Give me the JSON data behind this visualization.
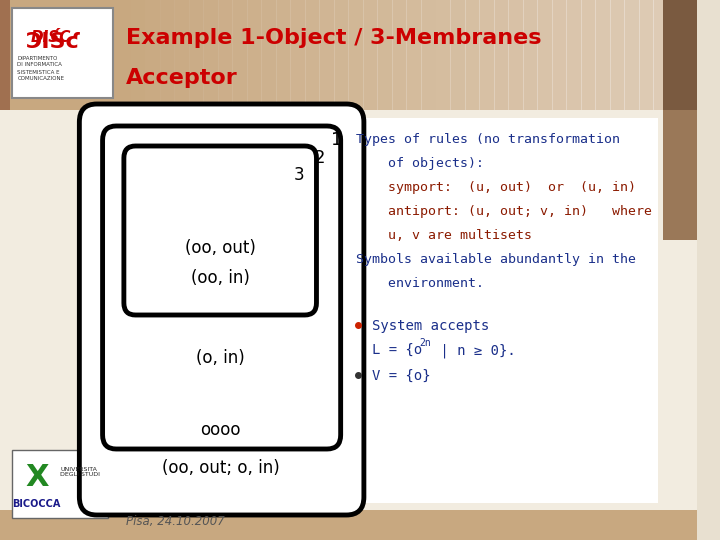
{
  "title_line1": "Example 1-Object / 3-Membranes",
  "title_line2": "Acceptor",
  "title_color": "#cc0000",
  "header_bg_left": "#a07858",
  "header_bg_right": "#f0e8e0",
  "content_bg": "#f5f0e8",
  "right_panel_bg": "#ffffff",
  "sidebar_color": "#9a7860",
  "sidebar2_color": "#b89070",
  "right_col_lines": [
    [
      "Types of rules (no transformation",
      "#1a2f8a"
    ],
    [
      "    of objects):",
      "#1a2f8a"
    ],
    [
      "    symport:  (u, out)  or  (u, in)",
      "#8b1a00"
    ],
    [
      "    antiport: (u, out; v, in)   where",
      "#8b1a00"
    ],
    [
      "    u, v are multisets",
      "#8b1a00"
    ],
    [
      "Symbols available abundantly in the",
      "#1a2f8a"
    ],
    [
      "    environment.",
      "#1a2f8a"
    ]
  ],
  "bullet_color": "#cc2200",
  "bullet1_line1": "System accepts",
  "bullet1_line2_pre": "L = {o",
  "bullet1_superscript": "2n",
  "bullet1_line2_post": " | n ≥ 0}.",
  "bullet2": "V = {o}",
  "bullet_text_color": "#1a2f8a",
  "date_text": "Pisa, 24.10.2007",
  "mem1_label": "1",
  "mem2_label": "2",
  "mem3_label": "3",
  "mem_inner_text1": "(oo, out)",
  "mem_inner_text2": "(oo, in)",
  "mem_mid_text": "(o, in)",
  "mem_outer_text": "oooo",
  "mem_bottom_text": "(oo, out; o, in)"
}
